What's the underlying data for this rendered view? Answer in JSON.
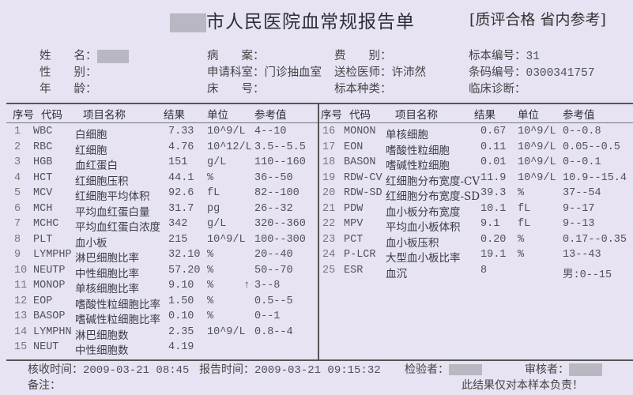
{
  "title": "市人民医院血常规报告单",
  "badge": "[质评合格 省内参考]",
  "info": [
    {
      "label": "姓　　名：",
      "value": ""
    },
    {
      "label": "病　　案：",
      "value": ""
    },
    {
      "label": "费　　别：",
      "value": ""
    },
    {
      "label": "标本编号：",
      "value": "31"
    },
    {
      "label": "性　　别：",
      "value": ""
    },
    {
      "label": "申请科室：",
      "value": "门诊抽血室"
    },
    {
      "label": "送检医师：",
      "value": "许沛然"
    },
    {
      "label": "条码编号：",
      "value": "0300341757"
    },
    {
      "label": "年　　龄：",
      "value": ""
    },
    {
      "label": "床　　号：",
      "value": ""
    },
    {
      "label": "标本种类：",
      "value": ""
    },
    {
      "label": "临床诊断：",
      "value": ""
    }
  ],
  "columns": [
    "序号",
    "代码",
    "项目名称",
    "结果",
    "单位",
    "参考值"
  ],
  "left_rows": [
    {
      "no": "1",
      "code": "WBC",
      "name": "白细胞",
      "result": "7.33",
      "unit": "10^9/L",
      "flag": "",
      "ref": "4--10"
    },
    {
      "no": "2",
      "code": "RBC",
      "name": "红细胞",
      "result": "4.76",
      "unit": "10^12/L",
      "flag": "",
      "ref": "3.5--5.5"
    },
    {
      "no": "3",
      "code": "HGB",
      "name": "血红蛋白",
      "result": "151",
      "unit": "g/L",
      "flag": "",
      "ref": "110--160"
    },
    {
      "no": "4",
      "code": "HCT",
      "name": "红细胞压积",
      "result": "44.1",
      "unit": "%",
      "flag": "",
      "ref": "36--50"
    },
    {
      "no": "5",
      "code": "MCV",
      "name": "红细胞平均体积",
      "result": "92.6",
      "unit": "fL",
      "flag": "",
      "ref": "82--100"
    },
    {
      "no": "6",
      "code": "MCH",
      "name": "平均血红蛋白量",
      "result": "31.7",
      "unit": "pg",
      "flag": "",
      "ref": "26--32"
    },
    {
      "no": "7",
      "code": "MCHC",
      "name": "平均血红蛋白浓度",
      "result": "342",
      "unit": "g/L",
      "flag": "",
      "ref": "320--360"
    },
    {
      "no": "8",
      "code": "PLT",
      "name": "血小板",
      "result": "215",
      "unit": "10^9/L",
      "flag": "",
      "ref": "100--300"
    },
    {
      "no": "9",
      "code": "LYMPHP",
      "name": "淋巴细胞比率",
      "result": "32.10",
      "unit": "%",
      "flag": "",
      "ref": "20--40"
    },
    {
      "no": "10",
      "code": "NEUTP",
      "name": "中性细胞比率",
      "result": "57.20",
      "unit": "%",
      "flag": "",
      "ref": "50--70"
    },
    {
      "no": "11",
      "code": "MONOP",
      "name": "单核细胞比率",
      "result": "9.10",
      "unit": "%",
      "flag": "↑",
      "ref": "3--8"
    },
    {
      "no": "12",
      "code": "EOP",
      "name": "嗜酸性粒细胞比率",
      "result": "1.50",
      "unit": "%",
      "flag": "",
      "ref": "0.5--5"
    },
    {
      "no": "13",
      "code": "BASOP",
      "name": "嗜碱性粒细胞比率",
      "result": "0.10",
      "unit": "%",
      "flag": "",
      "ref": "0--1"
    },
    {
      "no": "14",
      "code": "LYMPHN",
      "name": "淋巴细胞数",
      "result": "2.35",
      "unit": "10^9/L",
      "flag": "",
      "ref": "0.8--4"
    },
    {
      "no": "15",
      "code": "NEUT",
      "name": "中性细胞数",
      "result": "4.19",
      "unit": "",
      "flag": "",
      "ref": ""
    }
  ],
  "right_rows": [
    {
      "no": "16",
      "code": "MONON",
      "name": "单核细胞",
      "result": "0.67",
      "unit": "10^9/L",
      "ref": "0--0.8"
    },
    {
      "no": "17",
      "code": "EON",
      "name": "嗜酸性粒细胞",
      "result": "0.11",
      "unit": "10^9/L",
      "ref": "0.05--0.5"
    },
    {
      "no": "18",
      "code": "BASON",
      "name": "嗜碱性粒细胞",
      "result": "0.01",
      "unit": "10^9/L",
      "ref": "0--0.1"
    },
    {
      "no": "19",
      "code": "RDW-CV",
      "name": "红细胞分布宽度-CV",
      "result": "11.9",
      "unit": "10^9/L",
      "ref": "10.9--15.4"
    },
    {
      "no": "20",
      "code": "RDW-SD",
      "name": "红细胞分布宽度-SD",
      "result": "39.3",
      "unit": "%",
      "ref": "37--54"
    },
    {
      "no": "21",
      "code": "PDW",
      "name": "血小板分布宽度",
      "result": "10.1",
      "unit": "fL",
      "ref": "9--17"
    },
    {
      "no": "22",
      "code": "MPV",
      "name": "平均血小板体积",
      "result": "9.1",
      "unit": "fL",
      "ref": "9--13"
    },
    {
      "no": "23",
      "code": "PCT",
      "name": "血小板压积",
      "result": "0.20",
      "unit": "%",
      "ref": "0.17--0.35"
    },
    {
      "no": "24",
      "code": "P-LCR",
      "name": "大型血小板比率",
      "result": "19.1",
      "unit": "%",
      "ref": "13--43"
    },
    {
      "no": "25",
      "code": "ESR",
      "name": "血沉",
      "result": "8",
      "unit": "",
      "ref": "男:0--15"
    }
  ],
  "footer": {
    "receive_label": "核收时间：",
    "receive_time": "2009-03-21 08:45",
    "report_label": "报告时间：",
    "report_time": "2009-03-21 09:15:32",
    "tester_label": "检验者：",
    "reviewer_label": "审核者：",
    "note_label": "备注：",
    "disclaimer": "此结果仅对本样本负责！"
  },
  "colors": {
    "paper": "#e7e3f3",
    "ink": "#3a3a44",
    "redaction": "#b9b7c2"
  }
}
